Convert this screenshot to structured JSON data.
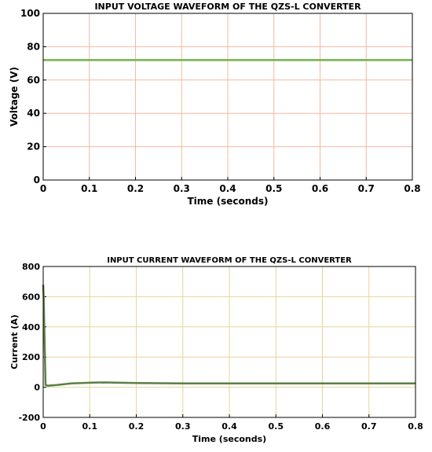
{
  "chart_data": [
    {
      "type": "line",
      "title": "INPUT VOLTAGE WAVEFORM OF THE QZS-L CONVERTER",
      "x_label": "Time (seconds)",
      "y_label": "Voltage (V)",
      "xlim": [
        0,
        0.8
      ],
      "xticks": [
        0,
        0.1,
        0.2,
        0.3,
        0.4,
        0.5,
        0.6,
        0.7,
        0.8
      ],
      "ylim": [
        0,
        100
      ],
      "yticks": [
        0,
        20,
        40,
        60,
        80,
        100
      ],
      "grid": true,
      "grid_color": "#f3b8a2",
      "series": [
        {
          "name": "Voltage",
          "color": "#6fb548",
          "x": [
            0,
            0.8
          ],
          "values": [
            72,
            72
          ]
        }
      ]
    },
    {
      "type": "line",
      "title": "INPUT CURRENT WAVEFORM OF THE QZS-L CONVERTER",
      "x_label": "Time (seconds)",
      "y_label": "Current (A)",
      "xlim": [
        0,
        0.8
      ],
      "xticks": [
        0,
        0.1,
        0.2,
        0.3,
        0.4,
        0.5,
        0.6,
        0.7,
        0.8
      ],
      "ylim": [
        -200,
        800
      ],
      "yticks": [
        -200,
        0,
        200,
        400,
        600,
        800
      ],
      "grid": true,
      "grid_color": "#ead49a",
      "series": [
        {
          "name": "Current",
          "color": "#5b7f45",
          "x": [
            0,
            0.001,
            0.005,
            0.01,
            0.03,
            0.06,
            0.1,
            0.13,
            0.2,
            0.3,
            0.4,
            0.5,
            0.6,
            0.7,
            0.8
          ],
          "values": [
            680,
            600,
            15,
            10,
            15,
            25,
            30,
            32,
            28,
            25,
            25,
            25,
            25,
            25,
            25
          ]
        }
      ]
    }
  ]
}
